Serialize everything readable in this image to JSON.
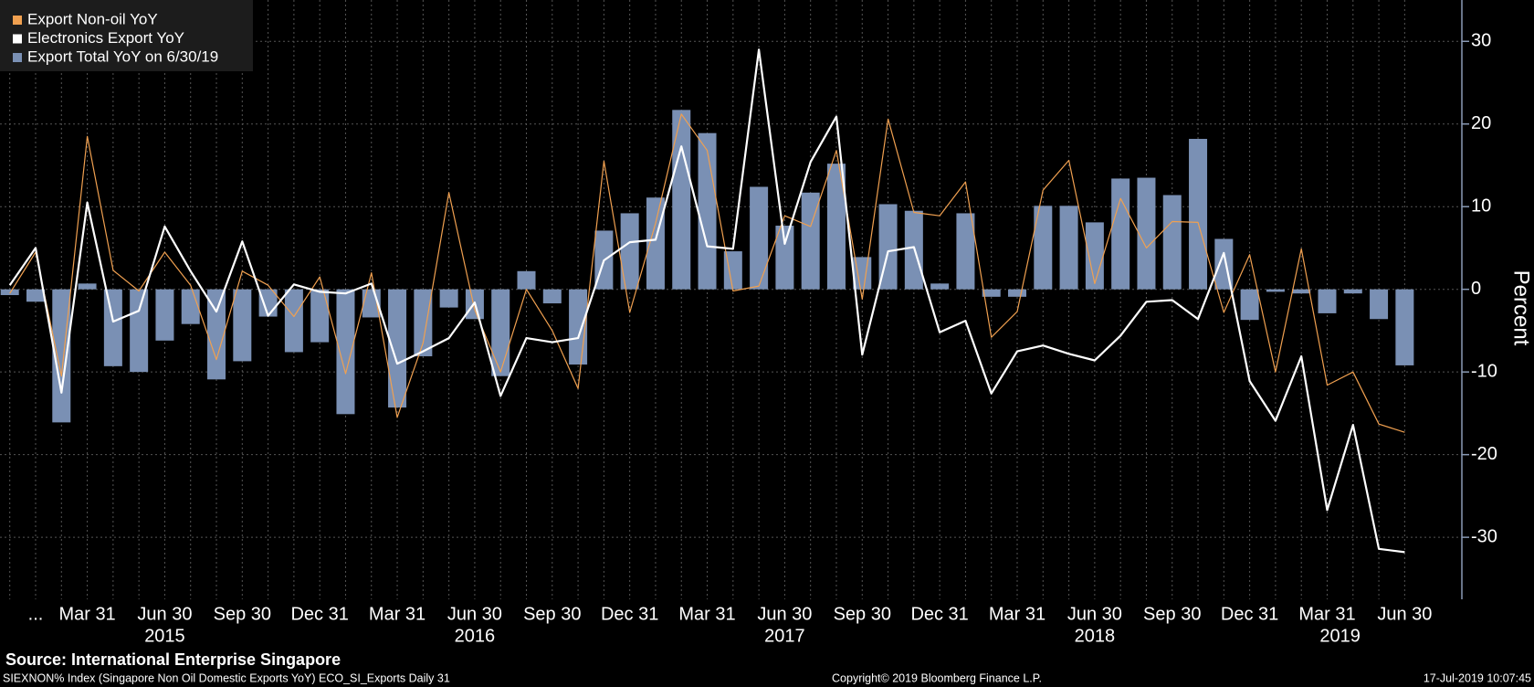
{
  "chart_data": {
    "type": "bar",
    "categories": [
      null,
      "...",
      null,
      "Mar 31",
      null,
      null,
      "Jun 30",
      null,
      null,
      "Sep 30",
      null,
      null,
      "Dec 31",
      null,
      null,
      "Mar 31",
      null,
      null,
      "Jun 30",
      null,
      null,
      "Sep 30",
      null,
      null,
      "Dec 31",
      null,
      null,
      "Mar 31",
      null,
      null,
      "Jun 30",
      null,
      null,
      "Sep 30",
      null,
      null,
      "Dec 31",
      null,
      null,
      "Mar 31",
      null,
      null,
      "Jun 30",
      null,
      null,
      "Sep 30",
      null,
      null,
      "Dec 31",
      null,
      null,
      "Mar 31",
      null,
      null,
      "Jun 30"
    ],
    "year_labels": [
      "2015",
      "2016",
      "2017",
      "2018",
      "2019"
    ],
    "y_axis_label": "Percent",
    "ylim": [
      -37.5,
      35
    ],
    "yticks": [
      -30,
      -20,
      -10,
      0,
      10,
      20,
      30
    ],
    "grid": true,
    "legend_position": "top-left",
    "series": [
      {
        "name": "Export Non-oil YoY",
        "type": "line",
        "color": "#f0a050",
        "values": [
          -0.5,
          4.5,
          -10.5,
          18.5,
          2.3,
          -0.2,
          4.5,
          0.5,
          -8.5,
          2.2,
          0.5,
          -3.3,
          1.5,
          -10.2,
          2,
          -15.5,
          -6.5,
          11.7,
          -2.5,
          -10,
          0,
          -5,
          -12,
          15.5,
          -2.8,
          8,
          21.2,
          16.8,
          -0.2,
          0.4,
          8.9,
          7.6,
          16.8,
          -1.2,
          20.6,
          9.3,
          8.9,
          13,
          -5.8,
          -2.7,
          12,
          15.6,
          0.7,
          11,
          5,
          8.2,
          8.1,
          -2.8,
          4.2,
          -10,
          4.9,
          -11.6,
          -10,
          -16.3,
          -17.3
        ]
      },
      {
        "name": "Electronics Export YoY",
        "type": "line",
        "color": "#ffffff",
        "values": [
          0.5,
          5,
          -12.5,
          10.5,
          -3.9,
          -2.6,
          7.6,
          2.2,
          -2.7,
          5.8,
          -3.2,
          0.6,
          -0.3,
          -0.5,
          0.7,
          -9,
          -7.5,
          -5.9,
          -1.6,
          -12.9,
          -5.9,
          -6.4,
          -5.9,
          3.5,
          5.7,
          6,
          17.3,
          5.2,
          4.9,
          29,
          5.5,
          15.4,
          20.9,
          -7.9,
          4.6,
          5.1,
          -5.2,
          -3.8,
          -12.6,
          -7.5,
          -6.8,
          -7.8,
          -8.6,
          -5.6,
          -1.5,
          -1.3,
          -3.6,
          4.4,
          -11.1,
          -15.9,
          -8.1,
          -26.7,
          -16.4,
          -31.4,
          -31.8
        ]
      },
      {
        "name": "Export Total YoY on 6/30/19",
        "type": "bar",
        "color": "#7a90b4",
        "values": [
          -0.7,
          -1.5,
          -16.1,
          0.7,
          -9.3,
          -10,
          -6.2,
          -4.2,
          -10.9,
          -8.7,
          -3.3,
          -7.6,
          -6.4,
          -15.1,
          -3.4,
          -14.3,
          -8.1,
          -2.2,
          -3.6,
          -10.5,
          2.2,
          -1.7,
          -9.1,
          7.1,
          9.2,
          11.1,
          21.7,
          18.9,
          4.6,
          12.4,
          7.7,
          11.7,
          15.2,
          3.9,
          10.3,
          9.5,
          0.7,
          9.2,
          -0.9,
          -0.9,
          10.1,
          10.1,
          8.1,
          13.4,
          13.5,
          11.4,
          18.2,
          6.1,
          -3.7,
          -0.3,
          -0.5,
          -2.9,
          -0.5,
          -3.6,
          -9.2
        ]
      }
    ]
  },
  "footer": {
    "source": "Source: International Enterprise Singapore",
    "index_description": "SIEXNON% Index (Singapore Non Oil Domestic Exports YoY) ECO_SI_Exports  Daily 31",
    "copyright": "Copyright© 2019 Bloomberg Finance L.P.",
    "timestamp": "17-Jul-2019 10:07:45"
  }
}
